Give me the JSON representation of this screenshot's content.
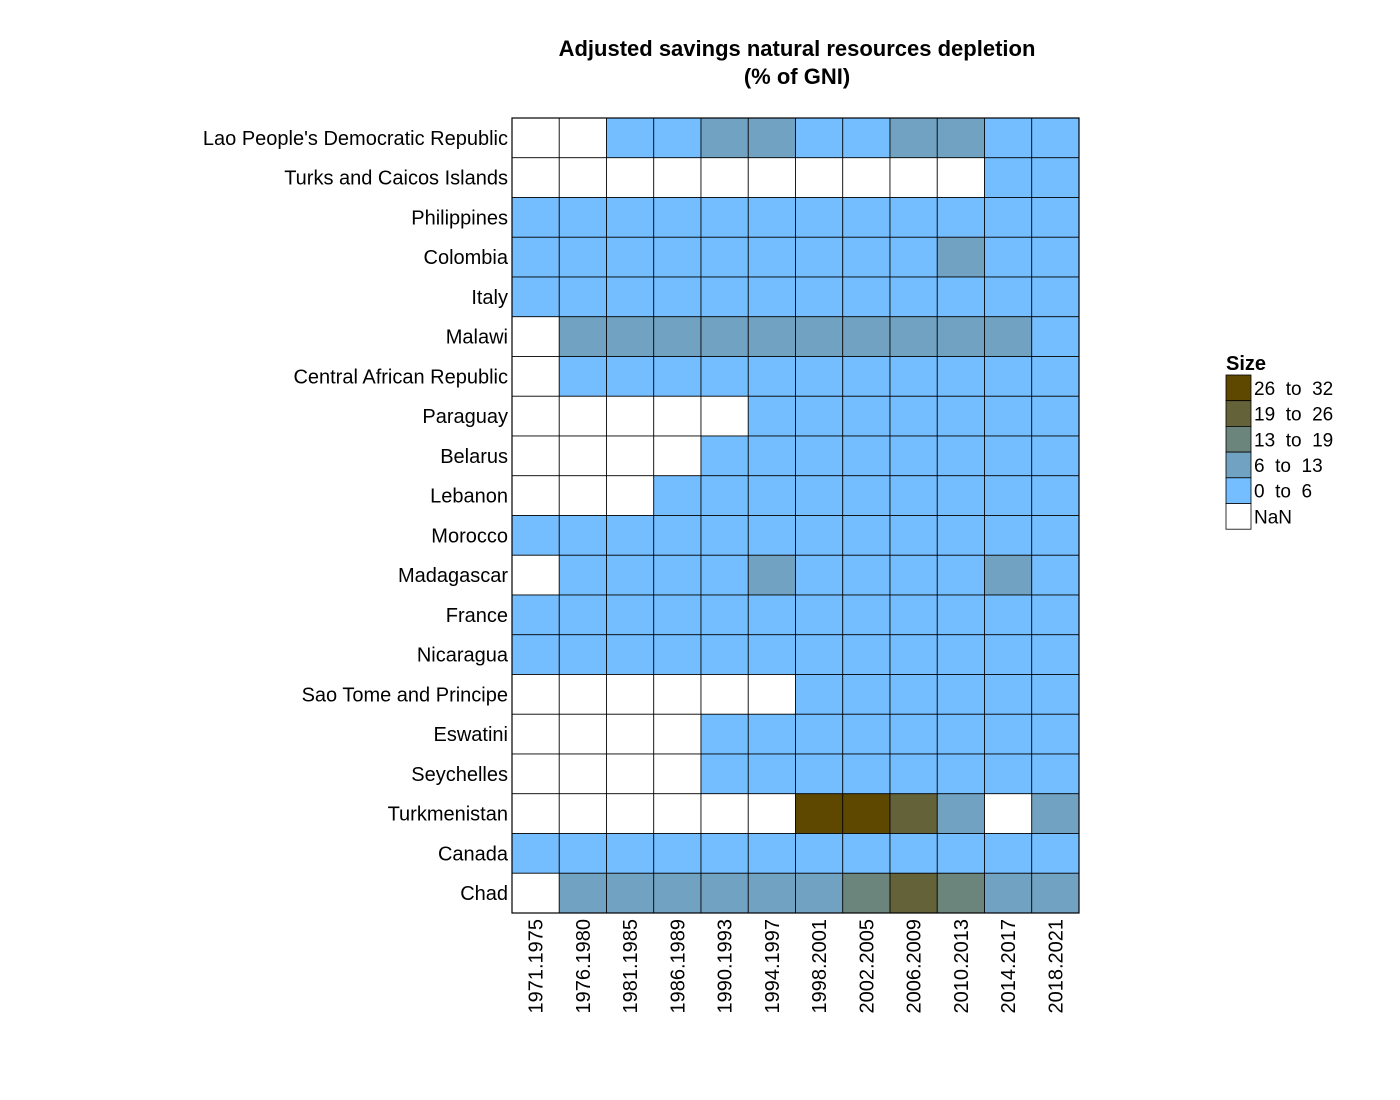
{
  "chart_data": {
    "type": "heatmap",
    "title": "Adjusted savings natural resources depletion",
    "subtitle": "(% of GNI)",
    "x_categories": [
      "1971.1975",
      "1976.1980",
      "1981.1985",
      "1986.1989",
      "1990.1993",
      "1994.1997",
      "1998.2001",
      "2002.2005",
      "2006.2009",
      "2010.2013",
      "2014.2017",
      "2018.2021"
    ],
    "y_categories": [
      "Lao People's Democratic Republic",
      "Turks and Caicos Islands",
      "Philippines",
      "Colombia",
      "Italy",
      "Malawi",
      "Central African Republic",
      "Paraguay",
      "Belarus",
      "Lebanon",
      "Morocco",
      "Madagascar",
      "France",
      "Nicaragua",
      "Sao Tome and Principe",
      "Eswatini",
      "Seychelles",
      "Turkmenistan",
      "Canada",
      "Chad"
    ],
    "bins": [
      {
        "label": "NaN",
        "color": "#ffffff"
      },
      {
        "label": "0  to  6",
        "color": "#74bdff"
      },
      {
        "label": "6  to  13",
        "color": "#72a2c2"
      },
      {
        "label": "13  to  19",
        "color": "#6b857c"
      },
      {
        "label": "19  to  26",
        "color": "#646238"
      },
      {
        "label": "26  to  32",
        "color": "#5e4800"
      }
    ],
    "cells": [
      [
        0,
        0,
        1,
        1,
        2,
        2,
        1,
        1,
        2,
        2,
        1,
        1
      ],
      [
        0,
        0,
        0,
        0,
        0,
        0,
        0,
        0,
        0,
        0,
        1,
        1
      ],
      [
        1,
        1,
        1,
        1,
        1,
        1,
        1,
        1,
        1,
        1,
        1,
        1
      ],
      [
        1,
        1,
        1,
        1,
        1,
        1,
        1,
        1,
        1,
        2,
        1,
        1
      ],
      [
        1,
        1,
        1,
        1,
        1,
        1,
        1,
        1,
        1,
        1,
        1,
        1
      ],
      [
        0,
        2,
        2,
        2,
        2,
        2,
        2,
        2,
        2,
        2,
        2,
        1
      ],
      [
        0,
        1,
        1,
        1,
        1,
        1,
        1,
        1,
        1,
        1,
        1,
        1
      ],
      [
        0,
        0,
        0,
        0,
        0,
        1,
        1,
        1,
        1,
        1,
        1,
        1
      ],
      [
        0,
        0,
        0,
        0,
        1,
        1,
        1,
        1,
        1,
        1,
        1,
        1
      ],
      [
        0,
        0,
        0,
        1,
        1,
        1,
        1,
        1,
        1,
        1,
        1,
        1
      ],
      [
        1,
        1,
        1,
        1,
        1,
        1,
        1,
        1,
        1,
        1,
        1,
        1
      ],
      [
        0,
        1,
        1,
        1,
        1,
        2,
        1,
        1,
        1,
        1,
        2,
        1
      ],
      [
        1,
        1,
        1,
        1,
        1,
        1,
        1,
        1,
        1,
        1,
        1,
        1
      ],
      [
        1,
        1,
        1,
        1,
        1,
        1,
        1,
        1,
        1,
        1,
        1,
        1
      ],
      [
        0,
        0,
        0,
        0,
        0,
        0,
        1,
        1,
        1,
        1,
        1,
        1
      ],
      [
        0,
        0,
        0,
        0,
        1,
        1,
        1,
        1,
        1,
        1,
        1,
        1
      ],
      [
        0,
        0,
        0,
        0,
        1,
        1,
        1,
        1,
        1,
        1,
        1,
        1
      ],
      [
        0,
        0,
        0,
        0,
        0,
        0,
        5,
        5,
        4,
        2,
        0,
        2
      ],
      [
        1,
        1,
        1,
        1,
        1,
        1,
        1,
        1,
        1,
        1,
        1,
        1
      ],
      [
        0,
        2,
        2,
        2,
        2,
        2,
        2,
        3,
        4,
        3,
        2,
        2
      ]
    ],
    "legend": {
      "title": "Size",
      "placement": "right",
      "order": [
        "26  to  32",
        "19  to  26",
        "13  to  19",
        "6  to  13",
        "0  to  6",
        "NaN"
      ]
    }
  }
}
